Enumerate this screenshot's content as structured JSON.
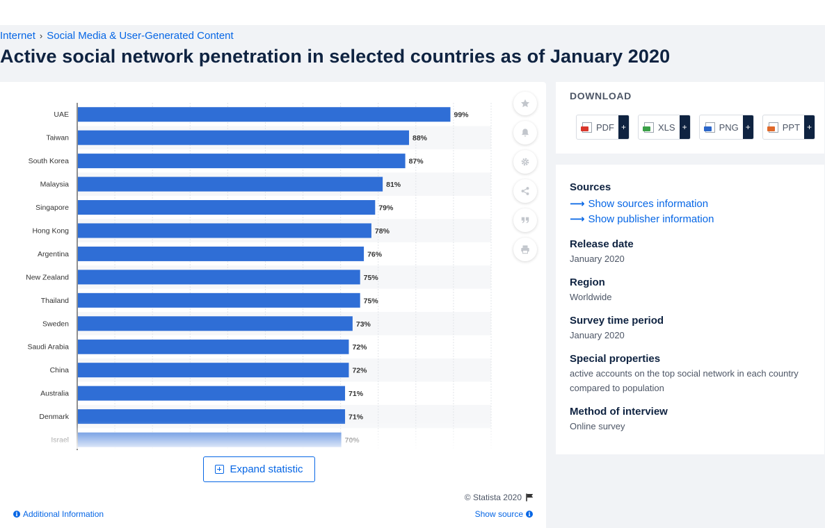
{
  "breadcrumb": {
    "item1": "Internet",
    "item2": "Social Media & User-Generated Content"
  },
  "page_title": "Active social network penetration in selected countries as of January 2020",
  "colors": {
    "bar": "#2f6ed6",
    "link": "#0666e5",
    "navy": "#0f2341",
    "stripe": "#f6f7f9",
    "grid": "#e1e4e8"
  },
  "chart_data": {
    "type": "bar",
    "orientation": "horizontal",
    "categories": [
      "UAE",
      "Taiwan",
      "South Korea",
      "Malaysia",
      "Singapore",
      "Hong Kong",
      "Argentina",
      "New Zealand",
      "Thailand",
      "Sweden",
      "Saudi Arabia",
      "China",
      "Australia",
      "Denmark",
      "Israel"
    ],
    "values": [
      99,
      88,
      87,
      81,
      79,
      78,
      76,
      75,
      75,
      73,
      72,
      72,
      71,
      71,
      70
    ],
    "value_labels": [
      "99%",
      "88%",
      "87%",
      "81%",
      "79%",
      "78%",
      "76%",
      "75%",
      "75%",
      "73%",
      "72%",
      "72%",
      "71%",
      "71%",
      "70%"
    ],
    "unit": "%",
    "xlim": [
      0,
      110
    ],
    "grid": true,
    "title": "",
    "xlabel": "",
    "ylabel": ""
  },
  "chart_footer": {
    "expand_label": "Expand statistic",
    "copyright": "© Statista 2020",
    "additional_info": "Additional Information",
    "show_source": "Show source"
  },
  "side_buttons": [
    "star-icon",
    "bell-icon",
    "gear-icon",
    "share-icon",
    "quote-icon",
    "print-icon"
  ],
  "download": {
    "title": "DOWNLOAD",
    "buttons": [
      {
        "label": "PDF",
        "color": "#d9362b",
        "addon": "+"
      },
      {
        "label": "XLS",
        "color": "#3aa047",
        "addon": "+"
      },
      {
        "label": "PNG",
        "color": "#2b66c9",
        "addon": "+"
      },
      {
        "label": "PPT",
        "color": "#e0692a",
        "addon": "+"
      }
    ]
  },
  "info": {
    "sources_label": "Sources",
    "show_sources": "Show sources information",
    "show_publisher": "Show publisher information",
    "release_date_label": "Release date",
    "release_date": "January 2020",
    "region_label": "Region",
    "region": "Worldwide",
    "survey_period_label": "Survey time period",
    "survey_period": "January 2020",
    "special_label": "Special properties",
    "special": "active accounts on the top social network in each country compared to population",
    "method_label": "Method of interview",
    "method": "Online survey"
  }
}
